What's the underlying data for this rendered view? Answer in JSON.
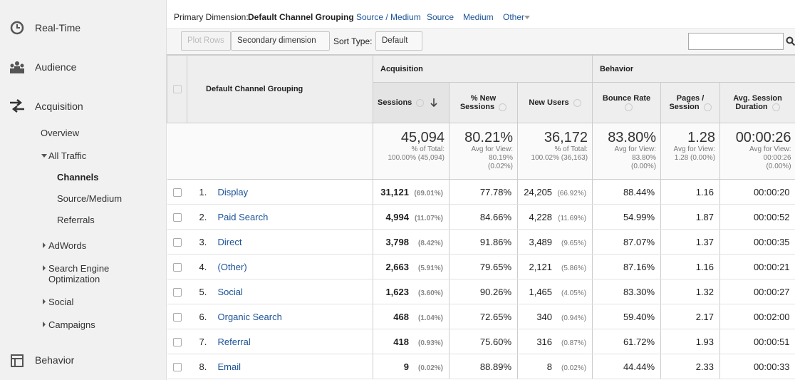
{
  "sidebar": {
    "items": [
      "Real-Time",
      "Audience",
      "Acquisition",
      "Behavior"
    ],
    "acquisition_menu": {
      "overview": "Overview",
      "all_traffic": "All Traffic",
      "all_traffic_items": [
        "Channels",
        "Source/Medium",
        "Referrals"
      ],
      "more": [
        "AdWords",
        "Search Engine Optimization",
        "Social",
        "Campaigns"
      ]
    }
  },
  "primary_dimension": {
    "label": "Primary Dimension:",
    "selected": "Default Channel Grouping",
    "options": [
      "Source / Medium",
      "Source",
      "Medium",
      "Other"
    ]
  },
  "toolbar": {
    "plot_rows": "Plot Rows",
    "secondary_dimension": "Secondary dimension",
    "sort_type_label": "Sort Type:",
    "sort_type": "Default"
  },
  "table": {
    "dimension_header": "Default Channel Grouping",
    "groups": [
      "Acquisition",
      "Behavior"
    ],
    "columns": [
      "Sessions",
      "% New Sessions",
      "New Users",
      "Bounce Rate",
      "Pages / Session",
      "Avg. Session Duration"
    ],
    "totals": [
      {
        "value": "45,094",
        "notes": [
          "% of Total:",
          "100.00% (45,094)"
        ]
      },
      {
        "value": "80.21%",
        "notes": [
          "Avg for View:",
          "80.19%",
          "(0.02%)"
        ]
      },
      {
        "value": "36,172",
        "notes": [
          "% of Total:",
          "100.02% (36,163)"
        ]
      },
      {
        "value": "83.80%",
        "notes": [
          "Avg for View:",
          "83.80%",
          "(0.00%)"
        ]
      },
      {
        "value": "1.28",
        "notes": [
          "Avg for View:",
          "1.28 (0.00%)"
        ]
      },
      {
        "value": "00:00:26",
        "notes": [
          "Avg for View:",
          "00:00:26",
          "(0.00%)"
        ]
      }
    ],
    "rows": [
      {
        "rank": "1.",
        "name": "Display",
        "sessions": "31,121",
        "sessions_share": "(69.01%)",
        "new_sessions": "77.78%",
        "new_users": "24,205",
        "new_users_share": "(66.92%)",
        "bounce_rate": "88.44%",
        "pages_per_session": "1.16",
        "avg_duration": "00:00:20"
      },
      {
        "rank": "2.",
        "name": "Paid Search",
        "sessions": "4,994",
        "sessions_share": "(11.07%)",
        "new_sessions": "84.66%",
        "new_users": "4,228",
        "new_users_share": "(11.69%)",
        "bounce_rate": "54.99%",
        "pages_per_session": "1.87",
        "avg_duration": "00:00:52"
      },
      {
        "rank": "3.",
        "name": "Direct",
        "sessions": "3,798",
        "sessions_share": "(8.42%)",
        "new_sessions": "91.86%",
        "new_users": "3,489",
        "new_users_share": "(9.65%)",
        "bounce_rate": "87.07%",
        "pages_per_session": "1.37",
        "avg_duration": "00:00:35"
      },
      {
        "rank": "4.",
        "name": "(Other)",
        "sessions": "2,663",
        "sessions_share": "(5.91%)",
        "new_sessions": "79.65%",
        "new_users": "2,121",
        "new_users_share": "(5.86%)",
        "bounce_rate": "87.16%",
        "pages_per_session": "1.16",
        "avg_duration": "00:00:21"
      },
      {
        "rank": "5.",
        "name": "Social",
        "sessions": "1,623",
        "sessions_share": "(3.60%)",
        "new_sessions": "90.26%",
        "new_users": "1,465",
        "new_users_share": "(4.05%)",
        "bounce_rate": "83.30%",
        "pages_per_session": "1.32",
        "avg_duration": "00:00:27"
      },
      {
        "rank": "6.",
        "name": "Organic Search",
        "sessions": "468",
        "sessions_share": "(1.04%)",
        "new_sessions": "72.65%",
        "new_users": "340",
        "new_users_share": "(0.94%)",
        "bounce_rate": "59.40%",
        "pages_per_session": "2.17",
        "avg_duration": "00:02:00"
      },
      {
        "rank": "7.",
        "name": "Referral",
        "sessions": "418",
        "sessions_share": "(0.93%)",
        "new_sessions": "75.60%",
        "new_users": "316",
        "new_users_share": "(0.87%)",
        "bounce_rate": "61.72%",
        "pages_per_session": "1.93",
        "avg_duration": "00:00:51"
      },
      {
        "rank": "8.",
        "name": "Email",
        "sessions": "9",
        "sessions_share": "(0.02%)",
        "new_sessions": "88.89%",
        "new_users": "8",
        "new_users_share": "(0.02%)",
        "bounce_rate": "44.44%",
        "pages_per_session": "2.33",
        "avg_duration": "00:00:33"
      }
    ]
  }
}
